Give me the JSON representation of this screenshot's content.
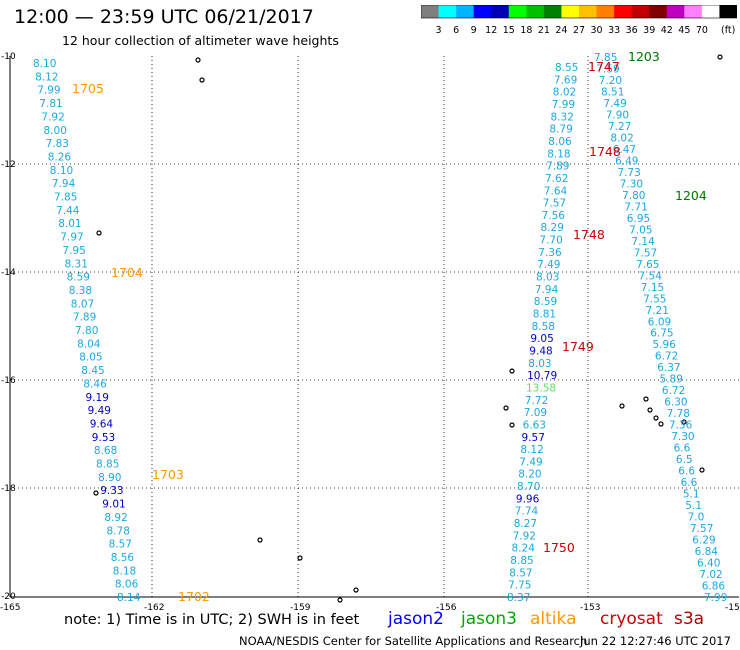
{
  "title": "12:00 — 23:59 UTC 06/21/2017",
  "subtitle": "12 hour collection of altimeter wave heights",
  "colorbar": {
    "colors": [
      "#7f7f7f",
      "#00ffff",
      "#00b4ff",
      "#0000ff",
      "#0000b0",
      "#00ff00",
      "#00c000",
      "#008000",
      "#ffff00",
      "#ffc000",
      "#ff8000",
      "#ff0000",
      "#c00000",
      "#800000",
      "#c000c0",
      "#ff80ff",
      "#ffffff",
      "#000000"
    ],
    "labels": [
      "3",
      "6",
      "9",
      "12",
      "15",
      "18",
      "21",
      "24",
      "27",
      "30",
      "33",
      "36",
      "39",
      "42",
      "45",
      "70"
    ],
    "unit": "(ft)"
  },
  "axes": {
    "y_ticks": [
      "-10",
      "-12",
      "-14",
      "-16",
      "-18",
      "-20"
    ],
    "x_ticks": [
      "-165",
      "-162",
      "-159",
      "-156",
      "-153",
      "-15"
    ]
  },
  "height_colors": {
    "cyan": "#1ca8e0",
    "blue": "#0000c8",
    "darkblue": "#000080",
    "green": "#60e060"
  },
  "tracks": {
    "left": [
      {
        "v": "8.10",
        "c": "cyan"
      },
      {
        "v": "8.12",
        "c": "cyan"
      },
      {
        "v": "7.99",
        "c": "cyan"
      },
      {
        "v": "7.81",
        "c": "cyan"
      },
      {
        "v": "7.92",
        "c": "cyan"
      },
      {
        "v": "8.00",
        "c": "cyan"
      },
      {
        "v": "7.83",
        "c": "cyan"
      },
      {
        "v": "8.26",
        "c": "cyan"
      },
      {
        "v": "8.10",
        "c": "cyan"
      },
      {
        "v": "7.94",
        "c": "cyan"
      },
      {
        "v": "7.85",
        "c": "cyan"
      },
      {
        "v": "7.44",
        "c": "cyan"
      },
      {
        "v": "8.01",
        "c": "cyan"
      },
      {
        "v": "7.97",
        "c": "cyan"
      },
      {
        "v": "7.95",
        "c": "cyan"
      },
      {
        "v": "8.31",
        "c": "cyan"
      },
      {
        "v": "8.59",
        "c": "cyan"
      },
      {
        "v": "8.38",
        "c": "cyan"
      },
      {
        "v": "8.07",
        "c": "cyan"
      },
      {
        "v": "7.89",
        "c": "cyan"
      },
      {
        "v": "7.80",
        "c": "cyan"
      },
      {
        "v": "8.04",
        "c": "cyan"
      },
      {
        "v": "8.05",
        "c": "cyan"
      },
      {
        "v": "8.45",
        "c": "cyan"
      },
      {
        "v": "8.46",
        "c": "cyan"
      },
      {
        "v": "9.19",
        "c": "blue"
      },
      {
        "v": "9.49",
        "c": "blue"
      },
      {
        "v": "9.64",
        "c": "blue"
      },
      {
        "v": "9.53",
        "c": "blue"
      },
      {
        "v": "8.68",
        "c": "cyan"
      },
      {
        "v": "8.85",
        "c": "cyan"
      },
      {
        "v": "8.90",
        "c": "cyan"
      },
      {
        "v": "9.33",
        "c": "blue"
      },
      {
        "v": "9.01",
        "c": "blue"
      },
      {
        "v": "8.92",
        "c": "cyan"
      },
      {
        "v": "8.78",
        "c": "cyan"
      },
      {
        "v": "8.57",
        "c": "cyan"
      },
      {
        "v": "8.56",
        "c": "cyan"
      },
      {
        "v": "8.18",
        "c": "cyan"
      },
      {
        "v": "8.06",
        "c": "cyan"
      },
      {
        "v": "8.14",
        "c": "cyan"
      }
    ],
    "middle": [
      {
        "v": "8.55",
        "c": "cyan"
      },
      {
        "v": "7.69",
        "c": "cyan"
      },
      {
        "v": "8.02",
        "c": "cyan"
      },
      {
        "v": "7.99",
        "c": "cyan"
      },
      {
        "v": "8.32",
        "c": "cyan"
      },
      {
        "v": "8.79",
        "c": "cyan"
      },
      {
        "v": "8.06",
        "c": "cyan"
      },
      {
        "v": "8.18",
        "c": "cyan"
      },
      {
        "v": "7.89",
        "c": "cyan"
      },
      {
        "v": "7.62",
        "c": "cyan"
      },
      {
        "v": "7.64",
        "c": "cyan"
      },
      {
        "v": "7.57",
        "c": "cyan"
      },
      {
        "v": "7.56",
        "c": "cyan"
      },
      {
        "v": "8.29",
        "c": "cyan"
      },
      {
        "v": "7.70",
        "c": "cyan"
      },
      {
        "v": "7.36",
        "c": "cyan"
      },
      {
        "v": "7.49",
        "c": "cyan"
      },
      {
        "v": "8.03",
        "c": "cyan"
      },
      {
        "v": "7.94",
        "c": "cyan"
      },
      {
        "v": "8.59",
        "c": "cyan"
      },
      {
        "v": "8.81",
        "c": "cyan"
      },
      {
        "v": "8.58",
        "c": "cyan"
      },
      {
        "v": "9.05",
        "c": "blue"
      },
      {
        "v": "9.48",
        "c": "blue"
      },
      {
        "v": "8.03",
        "c": "cyan"
      },
      {
        "v": "10.79",
        "c": "blue"
      },
      {
        "v": "13.58",
        "c": "green"
      },
      {
        "v": "7.72",
        "c": "cyan"
      },
      {
        "v": "7.09",
        "c": "cyan"
      },
      {
        "v": "6.63",
        "c": "cyan"
      },
      {
        "v": "9.57",
        "c": "blue"
      },
      {
        "v": "8.12",
        "c": "cyan"
      },
      {
        "v": "7.49",
        "c": "cyan"
      },
      {
        "v": "8.20",
        "c": "cyan"
      },
      {
        "v": "8.70",
        "c": "cyan"
      },
      {
        "v": "9.96",
        "c": "blue"
      },
      {
        "v": "7.74",
        "c": "cyan"
      },
      {
        "v": "8.27",
        "c": "cyan"
      },
      {
        "v": "7.92",
        "c": "cyan"
      },
      {
        "v": "8.24",
        "c": "cyan"
      },
      {
        "v": "8.85",
        "c": "cyan"
      },
      {
        "v": "8.57",
        "c": "cyan"
      },
      {
        "v": "7.75",
        "c": "cyan"
      },
      {
        "v": "8.37",
        "c": "cyan"
      }
    ],
    "right": [
      {
        "v": "7.85",
        "c": "cyan"
      },
      {
        "v": "7.59",
        "c": "cyan"
      },
      {
        "v": "7.20",
        "c": "cyan"
      },
      {
        "v": "8.51",
        "c": "cyan"
      },
      {
        "v": "7.49",
        "c": "cyan"
      },
      {
        "v": "7.90",
        "c": "cyan"
      },
      {
        "v": "7.27",
        "c": "cyan"
      },
      {
        "v": "8.02",
        "c": "cyan"
      },
      {
        "v": "6.47",
        "c": "cyan"
      },
      {
        "v": "6.49",
        "c": "cyan"
      },
      {
        "v": "7.73",
        "c": "cyan"
      },
      {
        "v": "7.30",
        "c": "cyan"
      },
      {
        "v": "7.80",
        "c": "cyan"
      },
      {
        "v": "7.71",
        "c": "cyan"
      },
      {
        "v": "6.95",
        "c": "cyan"
      },
      {
        "v": "7.05",
        "c": "cyan"
      },
      {
        "v": "7.14",
        "c": "cyan"
      },
      {
        "v": "7.57",
        "c": "cyan"
      },
      {
        "v": "7.65",
        "c": "cyan"
      },
      {
        "v": "7.54",
        "c": "cyan"
      },
      {
        "v": "7.15",
        "c": "cyan"
      },
      {
        "v": "7.55",
        "c": "cyan"
      },
      {
        "v": "7.21",
        "c": "cyan"
      },
      {
        "v": "6.09",
        "c": "cyan"
      },
      {
        "v": "6.75",
        "c": "cyan"
      },
      {
        "v": "5.96",
        "c": "cyan"
      },
      {
        "v": "6.72",
        "c": "cyan"
      },
      {
        "v": "6.37",
        "c": "cyan"
      },
      {
        "v": "5.89",
        "c": "cyan"
      },
      {
        "v": "6.72",
        "c": "cyan"
      },
      {
        "v": "6.30",
        "c": "cyan"
      },
      {
        "v": "7.78",
        "c": "cyan"
      },
      {
        "v": "7.36",
        "c": "cyan"
      },
      {
        "v": "7.30",
        "c": "cyan"
      },
      {
        "v": "6.6",
        "c": "cyan"
      },
      {
        "v": "6.5",
        "c": "cyan"
      },
      {
        "v": "6.6",
        "c": "cyan"
      },
      {
        "v": "6.6",
        "c": "cyan"
      },
      {
        "v": "5.1",
        "c": "cyan"
      },
      {
        "v": "5.1",
        "c": "cyan"
      },
      {
        "v": "7.0",
        "c": "cyan"
      },
      {
        "v": "7.57",
        "c": "cyan"
      },
      {
        "v": "6.29",
        "c": "cyan"
      },
      {
        "v": "6.84",
        "c": "cyan"
      },
      {
        "v": "6.40",
        "c": "cyan"
      },
      {
        "v": "7.02",
        "c": "cyan"
      },
      {
        "v": "6.86",
        "c": "cyan"
      },
      {
        "v": "7.99",
        "c": "cyan"
      }
    ]
  },
  "time_labels": [
    {
      "text": "1705",
      "color": "#ff9900"
    },
    {
      "text": "1704",
      "color": "#ff9900"
    },
    {
      "text": "1703",
      "color": "#ff9900"
    },
    {
      "text": "1702",
      "color": "#ff9900"
    },
    {
      "text": "1747",
      "color": "#cc0000"
    },
    {
      "text": "1748",
      "color": "#cc0000"
    },
    {
      "text": "1748",
      "color": "#cc0000"
    },
    {
      "text": "1749",
      "color": "#cc0000"
    },
    {
      "text": "1750",
      "color": "#cc0000"
    },
    {
      "text": "1203",
      "color": "#007700"
    },
    {
      "text": "1204",
      "color": "#007700"
    }
  ],
  "legend": {
    "note": "note:  1) Time is in UTC;  2) SWH is in feet",
    "satellites": [
      {
        "name": "jason2",
        "color": "#0000ff"
      },
      {
        "name": "jason3",
        "color": "#00aa00"
      },
      {
        "name": "altika",
        "color": "#ff9900"
      },
      {
        "name": "cryosat",
        "color": "#cc0000"
      },
      {
        "name": "s3a",
        "color": "#b00000"
      }
    ]
  },
  "footer": {
    "credit": "NOAA/NESDIS Center for Satellite Applications and Research",
    "timestamp": "Jun 22 12:27:46 UTC 2017"
  }
}
